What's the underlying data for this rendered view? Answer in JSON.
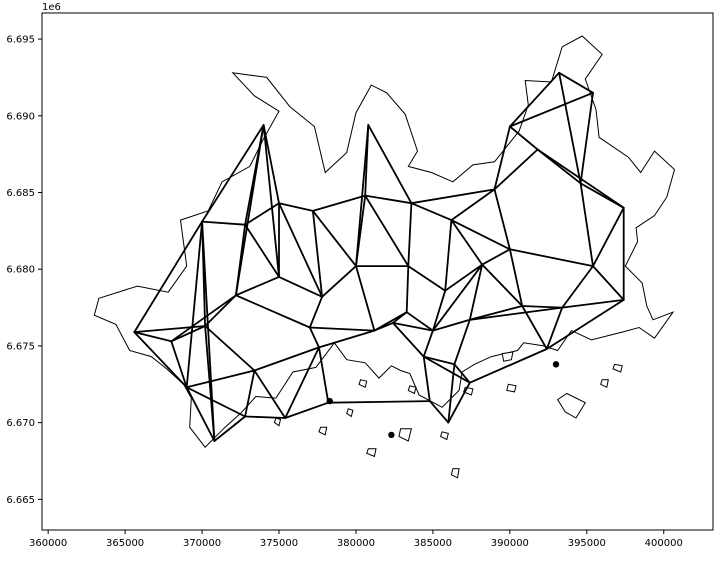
{
  "chart_data": {
    "type": "line",
    "title": "",
    "xlabel": "",
    "ylabel": "",
    "y_offset_label": "1e6",
    "xlim": [
      359600,
      403200
    ],
    "ylim": [
      6663000,
      6696700
    ],
    "x_ticks": [
      360000,
      365000,
      370000,
      375000,
      380000,
      385000,
      390000,
      395000,
      400000
    ],
    "x_tick_labels": [
      "360000",
      "365000",
      "370000",
      "375000",
      "380000",
      "385000",
      "390000",
      "395000",
      "400000"
    ],
    "y_ticks": [
      6665000,
      6670000,
      6675000,
      6680000,
      6685000,
      6690000,
      6695000
    ],
    "y_tick_labels": [
      "6.665",
      "6.670",
      "6.675",
      "6.680",
      "6.685",
      "6.690",
      "6.695"
    ],
    "grid": false,
    "legend": "none",
    "colors": {
      "outline": "#000000",
      "fill": "#ffffff",
      "network": "#000000"
    },
    "nodes": [
      [
        365600,
        6675900
      ],
      [
        370000,
        6683100
      ],
      [
        374000,
        6689400
      ],
      [
        372800,
        6682900
      ],
      [
        375000,
        6684300
      ],
      [
        369000,
        6672300
      ],
      [
        370800,
        6668800
      ],
      [
        373400,
        6673400
      ],
      [
        375400,
        6670300
      ],
      [
        377600,
        6674900
      ],
      [
        378200,
        6671300
      ],
      [
        377200,
        6683800
      ],
      [
        380600,
        6684800
      ],
      [
        383600,
        6684300
      ],
      [
        385800,
        6678600
      ],
      [
        383400,
        6680200
      ],
      [
        380000,
        6680200
      ],
      [
        377800,
        6678200
      ],
      [
        381200,
        6676000
      ],
      [
        384400,
        6674300
      ],
      [
        387400,
        6676700
      ],
      [
        390000,
        6681300
      ],
      [
        389000,
        6685200
      ],
      [
        391800,
        6687800
      ],
      [
        390000,
        6689300
      ],
      [
        393200,
        6692800
      ],
      [
        395400,
        6691500
      ],
      [
        394600,
        6685600
      ],
      [
        397400,
        6684000
      ],
      [
        395400,
        6680200
      ],
      [
        397400,
        6678000
      ],
      [
        393400,
        6677500
      ],
      [
        390800,
        6677600
      ],
      [
        392400,
        6674800
      ],
      [
        387400,
        6672600
      ],
      [
        384800,
        6671400
      ],
      [
        386000,
        6670000
      ],
      [
        380800,
        6689400
      ],
      [
        377000,
        6676200
      ],
      [
        375000,
        6679500
      ],
      [
        372200,
        6678300
      ],
      [
        370200,
        6676300
      ],
      [
        368000,
        6675300
      ],
      [
        372800,
        6670400
      ],
      [
        382400,
        6676500
      ],
      [
        386200,
        6683200
      ],
      [
        385000,
        6676000
      ],
      [
        388200,
        6680300
      ],
      [
        383300,
        6677200
      ],
      [
        386400,
        6673800
      ]
    ],
    "edges": [
      [
        0,
        1
      ],
      [
        0,
        41
      ],
      [
        0,
        42
      ],
      [
        0,
        5
      ],
      [
        1,
        2
      ],
      [
        1,
        3
      ],
      [
        1,
        41
      ],
      [
        1,
        5
      ],
      [
        1,
        6
      ],
      [
        2,
        3
      ],
      [
        2,
        4
      ],
      [
        2,
        39
      ],
      [
        3,
        4
      ],
      [
        3,
        39
      ],
      [
        3,
        40
      ],
      [
        4,
        11
      ],
      [
        4,
        39
      ],
      [
        4,
        17
      ],
      [
        11,
        12
      ],
      [
        11,
        16
      ],
      [
        11,
        17
      ],
      [
        12,
        13
      ],
      [
        12,
        16
      ],
      [
        12,
        37
      ],
      [
        13,
        15
      ],
      [
        13,
        45
      ],
      [
        13,
        22
      ],
      [
        15,
        16
      ],
      [
        15,
        14
      ],
      [
        15,
        48
      ],
      [
        14,
        45
      ],
      [
        14,
        47
      ],
      [
        14,
        46
      ],
      [
        16,
        18
      ],
      [
        16,
        17
      ],
      [
        17,
        38
      ],
      [
        17,
        39
      ],
      [
        18,
        44
      ],
      [
        18,
        48
      ],
      [
        18,
        9
      ],
      [
        18,
        38
      ],
      [
        19,
        44
      ],
      [
        19,
        49
      ],
      [
        19,
        35
      ],
      [
        19,
        46
      ],
      [
        20,
        46
      ],
      [
        20,
        47
      ],
      [
        20,
        32
      ],
      [
        20,
        49
      ],
      [
        21,
        47
      ],
      [
        21,
        22
      ],
      [
        21,
        32
      ],
      [
        21,
        29
      ],
      [
        22,
        23
      ],
      [
        22,
        24
      ],
      [
        22,
        45
      ],
      [
        23,
        24
      ],
      [
        23,
        27
      ],
      [
        24,
        25
      ],
      [
        24,
        26
      ],
      [
        25,
        26
      ],
      [
        25,
        27
      ],
      [
        26,
        27
      ],
      [
        27,
        28
      ],
      [
        27,
        29
      ],
      [
        28,
        29
      ],
      [
        28,
        30
      ],
      [
        29,
        30
      ],
      [
        29,
        31
      ],
      [
        30,
        31
      ],
      [
        30,
        33
      ],
      [
        31,
        32
      ],
      [
        31,
        33
      ],
      [
        32,
        33
      ],
      [
        33,
        34
      ],
      [
        34,
        49
      ],
      [
        34,
        36
      ],
      [
        35,
        36
      ],
      [
        35,
        10
      ],
      [
        36,
        49
      ],
      [
        38,
        9
      ],
      [
        38,
        40
      ],
      [
        9,
        10
      ],
      [
        9,
        7
      ],
      [
        9,
        8
      ],
      [
        10,
        8
      ],
      [
        8,
        7
      ],
      [
        8,
        43
      ],
      [
        7,
        43
      ],
      [
        7,
        41
      ],
      [
        7,
        5
      ],
      [
        5,
        6
      ],
      [
        5,
        43
      ],
      [
        6,
        43
      ],
      [
        6,
        41
      ],
      [
        40,
        41
      ],
      [
        40,
        42
      ],
      [
        41,
        42
      ],
      [
        40,
        39
      ],
      [
        44,
        46
      ],
      [
        44,
        48
      ],
      [
        46,
        47
      ],
      [
        37,
        16
      ],
      [
        37,
        13
      ],
      [
        45,
        47
      ],
      [
        23,
        28
      ],
      [
        21,
        45
      ],
      [
        31,
        20
      ],
      [
        2,
        40
      ],
      [
        42,
        5
      ],
      [
        48,
        46
      ],
      [
        34,
        19
      ],
      [
        12,
        15
      ],
      [
        47,
        32
      ]
    ],
    "points": [
      [
        382300,
        6669200
      ],
      [
        393000,
        6673800
      ],
      [
        378300,
        6671400
      ]
    ],
    "regions": [
      [
        [
          363300,
          6678100
        ],
        [
          365800,
          6678900
        ],
        [
          367800,
          6678500
        ],
        [
          369000,
          6680200
        ],
        [
          368600,
          6683200
        ],
        [
          370400,
          6683800
        ],
        [
          371300,
          6685700
        ],
        [
          373100,
          6686700
        ],
        [
          374000,
          6688500
        ],
        [
          375000,
          6690300
        ],
        [
          373400,
          6691300
        ],
        [
          372000,
          6692800
        ],
        [
          374200,
          6692500
        ],
        [
          375700,
          6690600
        ],
        [
          377300,
          6689300
        ],
        [
          378000,
          6686300
        ],
        [
          379400,
          6687600
        ],
        [
          380000,
          6690200
        ],
        [
          381000,
          6692000
        ],
        [
          382000,
          6691500
        ],
        [
          383200,
          6690100
        ],
        [
          384000,
          6687700
        ],
        [
          383400,
          6686700
        ],
        [
          384900,
          6686300
        ],
        [
          386300,
          6685700
        ],
        [
          387600,
          6686800
        ],
        [
          389000,
          6687000
        ],
        [
          390600,
          6689000
        ],
        [
          391200,
          6690700
        ],
        [
          391000,
          6692300
        ],
        [
          392700,
          6692200
        ],
        [
          393400,
          6694500
        ],
        [
          394700,
          6695200
        ],
        [
          396000,
          6694000
        ],
        [
          394900,
          6692400
        ],
        [
          395600,
          6690400
        ],
        [
          395800,
          6688600
        ],
        [
          397700,
          6687300
        ],
        [
          398500,
          6686300
        ],
        [
          399400,
          6687700
        ],
        [
          400700,
          6686500
        ],
        [
          400200,
          6684700
        ],
        [
          399400,
          6683500
        ],
        [
          398200,
          6682700
        ],
        [
          398300,
          6681800
        ],
        [
          397500,
          6680200
        ],
        [
          398600,
          6679100
        ],
        [
          398900,
          6677600
        ],
        [
          399300,
          6676700
        ],
        [
          400600,
          6677200
        ],
        [
          399400,
          6675500
        ],
        [
          398400,
          6676200
        ],
        [
          397300,
          6675900
        ],
        [
          395300,
          6675400
        ],
        [
          394000,
          6676000
        ],
        [
          393100,
          6674700
        ],
        [
          392200,
          6675000
        ],
        [
          390900,
          6675200
        ],
        [
          390500,
          6674700
        ],
        [
          388800,
          6674300
        ],
        [
          387700,
          6673800
        ],
        [
          386900,
          6673300
        ],
        [
          386700,
          6672100
        ],
        [
          385600,
          6671000
        ],
        [
          384100,
          6671800
        ],
        [
          383500,
          6673200
        ],
        [
          382900,
          6673400
        ],
        [
          382300,
          6673700
        ],
        [
          381500,
          6672900
        ],
        [
          380600,
          6673900
        ],
        [
          379400,
          6674100
        ],
        [
          378600,
          6675200
        ],
        [
          377400,
          6673600
        ],
        [
          375900,
          6673300
        ],
        [
          374800,
          6671600
        ],
        [
          373500,
          6671700
        ],
        [
          372500,
          6670600
        ],
        [
          371500,
          6669700
        ],
        [
          370200,
          6668400
        ],
        [
          369200,
          6669700
        ],
        [
          369300,
          6671600
        ],
        [
          368800,
          6672500
        ],
        [
          367700,
          6673500
        ],
        [
          366700,
          6674300
        ],
        [
          365300,
          6674700
        ],
        [
          364400,
          6676400
        ],
        [
          363000,
          6677000
        ]
      ],
      [
        [
          393600,
          6670700
        ],
        [
          394300,
          6670300
        ],
        [
          394900,
          6671300
        ],
        [
          393700,
          6671900
        ],
        [
          393100,
          6671500
        ]
      ],
      [
        [
          389600,
          6674000
        ],
        [
          390100,
          6674100
        ],
        [
          390200,
          6674600
        ],
        [
          389500,
          6674500
        ]
      ],
      [
        [
          382800,
          6669100
        ],
        [
          383400,
          6668800
        ],
        [
          383600,
          6669600
        ],
        [
          382900,
          6669600
        ]
      ],
      [
        [
          386200,
          6666600
        ],
        [
          386600,
          6666400
        ],
        [
          386700,
          6667000
        ],
        [
          386300,
          6667000
        ]
      ],
      [
        [
          380700,
          6668000
        ],
        [
          381200,
          6667800
        ],
        [
          381300,
          6668300
        ],
        [
          380800,
          6668300
        ]
      ],
      [
        [
          377600,
          6669400
        ],
        [
          378000,
          6669200
        ],
        [
          378100,
          6669700
        ],
        [
          377700,
          6669700
        ]
      ],
      [
        [
          387000,
          6672000
        ],
        [
          387500,
          6671800
        ],
        [
          387600,
          6672200
        ],
        [
          387100,
          6672300
        ]
      ],
      [
        [
          395900,
          6672500
        ],
        [
          396300,
          6672300
        ],
        [
          396400,
          6672800
        ],
        [
          396000,
          6672800
        ]
      ],
      [
        [
          396700,
          6673500
        ],
        [
          397200,
          6673300
        ],
        [
          397300,
          6673700
        ],
        [
          396800,
          6673800
        ]
      ],
      [
        [
          389800,
          6672100
        ],
        [
          390300,
          6672000
        ],
        [
          390400,
          6672400
        ],
        [
          389900,
          6672500
        ]
      ],
      [
        [
          385500,
          6669100
        ],
        [
          385900,
          6668900
        ],
        [
          386000,
          6669300
        ],
        [
          385600,
          6669400
        ]
      ],
      [
        [
          379400,
          6670600
        ],
        [
          379700,
          6670400
        ],
        [
          379800,
          6670800
        ],
        [
          379500,
          6670900
        ]
      ],
      [
        [
          380200,
          6672500
        ],
        [
          380600,
          6672300
        ],
        [
          380700,
          6672700
        ],
        [
          380300,
          6672800
        ]
      ],
      [
        [
          374700,
          6670000
        ],
        [
          375000,
          6669800
        ],
        [
          375100,
          6670200
        ],
        [
          374800,
          6670300
        ]
      ],
      [
        [
          383400,
          6672100
        ],
        [
          383800,
          6671900
        ],
        [
          383900,
          6672300
        ],
        [
          383500,
          6672400
        ]
      ]
    ]
  }
}
